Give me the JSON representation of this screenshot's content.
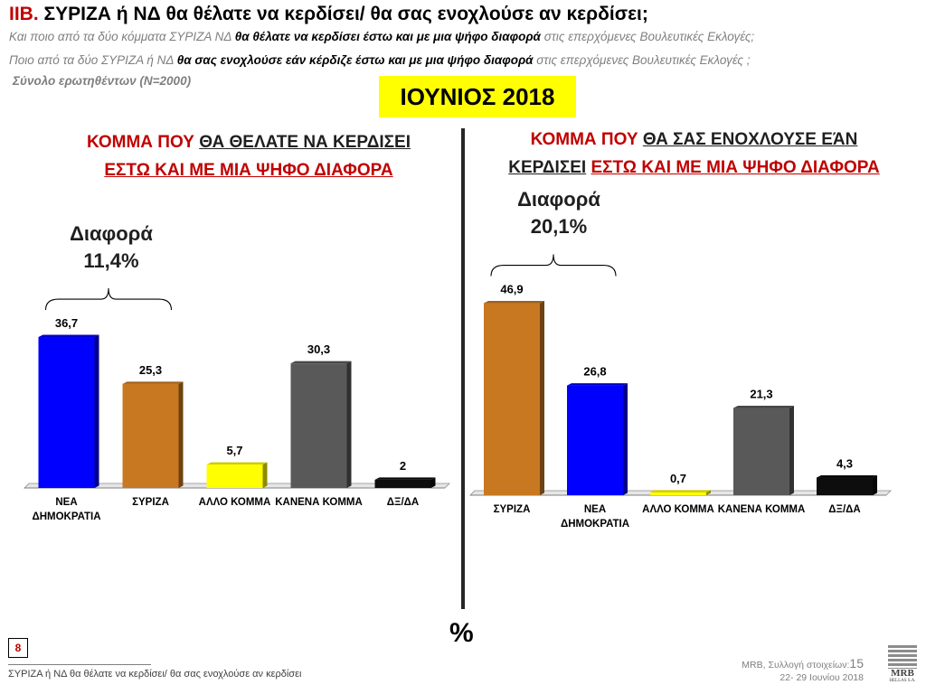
{
  "header": {
    "title_code": "ΙΙΒ.",
    "title_text": "ΣΥΡΙΖΑ ή ΝΔ θα θέλατε να κερδίσει/ θα σας ενοχλούσε αν κερδίσει;",
    "line1_pre": "Και ποιο από τα δύο κόμματα ΣΥΡΙΖΑ ΝΔ ",
    "line1_bold": "θα θέλατε να κερδίσει έστω και με μια ψήφο διαφορά",
    "line1_post": " στις επερχόμενες Βουλευτικές Εκλογές;",
    "line2_pre": "Ποιο από τα δύο ΣΥΡΙΖΑ ή ΝΔ ",
    "line2_bold": "θα σας ενοχλούσε εάν κέρδιζε έστω και με μια ψήφο διαφορά",
    "line2_post": " στις επερχόμενες Βουλευτικές Εκλογές ;",
    "base": "Σύνολο ερωτηθέντων (Ν=2000)",
    "month": "ΙΟΥΝΙΟΣ 2018"
  },
  "left_panel": {
    "title_a": "ΚΟΜΜΑ ΠΟΥ ",
    "title_b": "ΘΑ ΘΕΛΑΤΕ ΝΑ ΚΕΡΔΙΣΕΙ",
    "title_c": "ΕΣΤΩ ΚΑΙ ΜΕ ΜΙΑ ΨΗΦΟ ΔΙΑΦΟΡΑ",
    "diff_label": "Διαφορά",
    "diff_value": "11,4%"
  },
  "right_panel": {
    "title_a": "ΚΟΜΜΑ ΠΟΥ ",
    "title_b": "ΘΑ ΣΑΣ ΕΝΟΧΛΟΥΣΕ ΕΆΝ",
    "title_c": "ΚΕΡΔΙΣΕΙ",
    "title_d": "ΕΣΤΩ ΚΑΙ ΜΕ ΜΙΑ ΨΗΦΟ ΔΙΑΦΟΡΑ",
    "diff_label": "Διαφορά",
    "diff_value": "20,1%"
  },
  "chart_data": [
    {
      "type": "bar",
      "categories": [
        "ΝΕΑ ΔΗΜΟΚΡΑΤΙΑ",
        "ΣΥΡΙΖΑ",
        "ΑΛΛΟ ΚΟΜΜΑ",
        "ΚΑΝΕΝΑ ΚΟΜΜΑ",
        "ΔΞ/ΔΑ"
      ],
      "values": [
        36.7,
        25.3,
        5.7,
        30.3,
        2
      ],
      "value_labels": [
        "36,7",
        "25,3",
        "5,7",
        "30,3",
        "2"
      ],
      "colors": [
        "#0000ff",
        "#c87820",
        "#ffff00",
        "#595959",
        "#0d0d0d"
      ],
      "grid": false
    },
    {
      "type": "bar",
      "categories": [
        "ΣΥΡΙΖΑ",
        "ΝΕΑ ΔΗΜΟΚΡΑΤΙΑ",
        "ΑΛΛΟ ΚΟΜΜΑ",
        "ΚΑΝΕΝΑ ΚΟΜΜΑ",
        "ΔΞ/ΔΑ"
      ],
      "values": [
        46.9,
        26.8,
        0.7,
        21.3,
        4.3
      ],
      "value_labels": [
        "46,9",
        "26,8",
        "0,7",
        "21,3",
        "4,3"
      ],
      "colors": [
        "#c87820",
        "#0000ff",
        "#ffff00",
        "#595959",
        "#0d0d0d"
      ],
      "grid": false
    }
  ],
  "unit_label": "%",
  "footer": {
    "page_number": "8",
    "note": "ΣΥΡΙΖΑ ή ΝΔ θα θέλατε να κερδίσει/ θα σας ενοχλούσε αν κερδίσει",
    "source_pre": "MRB, Συλλογή στοιχείων:",
    "source_num": "15",
    "source_dates": "22- 29 Ιουνίου 2018",
    "logo_name": "MRB",
    "logo_sub": "HELLAS S.A."
  }
}
